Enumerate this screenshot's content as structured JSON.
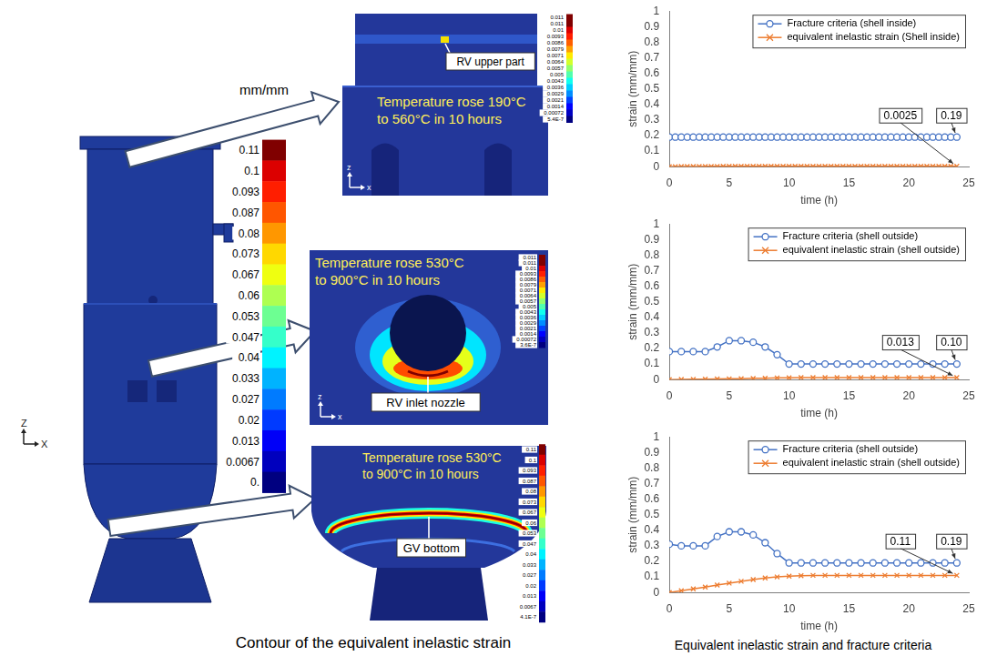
{
  "chart_data": [
    {
      "type": "line",
      "x": [
        0,
        0.5,
        1,
        1.5,
        2,
        2.5,
        3,
        3.5,
        4,
        4.5,
        5,
        5.5,
        6,
        6.5,
        7,
        7.5,
        8,
        8.5,
        9,
        9.5,
        10,
        10.5,
        11,
        11.5,
        12,
        12.5,
        13,
        13.5,
        14,
        14.5,
        15,
        15.5,
        16,
        16.5,
        17,
        17.5,
        18,
        18.5,
        19,
        19.5,
        20,
        20.5,
        21,
        21.5,
        22,
        22.5,
        23,
        23.5,
        24
      ],
      "series": [
        {
          "name": "Fracture criteria (shell inside)",
          "color": "#4472c4",
          "marker": "circle",
          "line_style": "solid",
          "values": [
            0.19,
            0.19,
            0.19,
            0.19,
            0.19,
            0.19,
            0.19,
            0.19,
            0.19,
            0.19,
            0.19,
            0.19,
            0.19,
            0.19,
            0.19,
            0.19,
            0.19,
            0.19,
            0.19,
            0.19,
            0.19,
            0.19,
            0.19,
            0.19,
            0.19,
            0.19,
            0.19,
            0.19,
            0.19,
            0.19,
            0.19,
            0.19,
            0.19,
            0.19,
            0.19,
            0.19,
            0.19,
            0.19,
            0.19,
            0.19,
            0.19,
            0.19,
            0.19,
            0.19,
            0.19,
            0.19,
            0.19,
            0.19,
            0.19
          ]
        },
        {
          "name": "equivalent inelastic strain (Shell inside)",
          "color": "#ed7d31",
          "marker": "x",
          "line_style": "solid",
          "values": [
            0,
            0.0005,
            0.001,
            0.0013,
            0.0016,
            0.0018,
            0.002,
            0.0021,
            0.0022,
            0.0023,
            0.0024,
            0.0025,
            0.0025,
            0.0025,
            0.0025,
            0.0025,
            0.0025,
            0.0025,
            0.0025,
            0.0025,
            0.0025,
            0.0025,
            0.0025,
            0.0025,
            0.0025,
            0.0025,
            0.0025,
            0.0025,
            0.0025,
            0.0025,
            0.0025,
            0.0025,
            0.0025,
            0.0025,
            0.0025,
            0.0025,
            0.0025,
            0.0025,
            0.0025,
            0.0025,
            0.0025,
            0.0025,
            0.0025,
            0.0025,
            0.0025,
            0.0025,
            0.0025,
            0.0025,
            0.0025
          ]
        }
      ],
      "x_label": "time (h)",
      "y_label": "strain (mm/mm)",
      "xlim": [
        0,
        25
      ],
      "xticks": [
        0,
        5,
        10,
        15,
        20,
        25
      ],
      "ylim": [
        0,
        1
      ],
      "yticks": [
        0,
        0.1,
        0.2,
        0.3,
        0.4,
        0.5,
        0.6,
        0.7,
        0.8,
        0.9,
        1
      ],
      "grid": false,
      "legend": "upper right",
      "annotations": [
        "0.19",
        "0.0025"
      ]
    },
    {
      "type": "line",
      "x": [
        0,
        1,
        2,
        3,
        4,
        5,
        6,
        7,
        8,
        9,
        10,
        11,
        12,
        13,
        14,
        15,
        16,
        17,
        18,
        19,
        20,
        21,
        22,
        23,
        24
      ],
      "series": [
        {
          "name": "Fracture criteria (shell outside)",
          "color": "#4472c4",
          "marker": "circle",
          "line_style": "solid",
          "values": [
            0.18,
            0.18,
            0.18,
            0.18,
            0.21,
            0.25,
            0.25,
            0.24,
            0.21,
            0.16,
            0.1,
            0.1,
            0.1,
            0.1,
            0.1,
            0.1,
            0.1,
            0.1,
            0.1,
            0.1,
            0.1,
            0.1,
            0.1,
            0.1,
            0.1
          ]
        },
        {
          "name": "equivalent inelastic strain (shell outside)",
          "color": "#ed7d31",
          "marker": "x",
          "line_style": "solid",
          "values": [
            0,
            0.001,
            0.002,
            0.003,
            0.004,
            0.005,
            0.006,
            0.008,
            0.009,
            0.011,
            0.012,
            0.013,
            0.013,
            0.013,
            0.013,
            0.013,
            0.013,
            0.013,
            0.013,
            0.013,
            0.013,
            0.013,
            0.013,
            0.013,
            0.013
          ]
        }
      ],
      "x_label": "time (h)",
      "y_label": "strain (mm/mm)",
      "xlim": [
        0,
        25
      ],
      "xticks": [
        0,
        5,
        10,
        15,
        20,
        25
      ],
      "ylim": [
        0,
        1
      ],
      "yticks": [
        0,
        0.1,
        0.2,
        0.3,
        0.4,
        0.5,
        0.6,
        0.7,
        0.8,
        0.9,
        1
      ],
      "grid": false,
      "legend": "upper right",
      "annotations": [
        "0.10",
        "0.013"
      ]
    },
    {
      "type": "line",
      "x": [
        0,
        1,
        2,
        3,
        4,
        5,
        6,
        7,
        8,
        9,
        10,
        11,
        12,
        13,
        14,
        15,
        16,
        17,
        18,
        19,
        20,
        21,
        22,
        23,
        24
      ],
      "series": [
        {
          "name": "Fracture criteria (shell outside)",
          "color": "#4472c4",
          "marker": "circle",
          "line_style": "solid",
          "values": [
            0.31,
            0.3,
            0.3,
            0.3,
            0.36,
            0.39,
            0.39,
            0.37,
            0.32,
            0.25,
            0.19,
            0.19,
            0.19,
            0.19,
            0.19,
            0.19,
            0.19,
            0.19,
            0.19,
            0.19,
            0.19,
            0.19,
            0.19,
            0.19,
            0.19
          ]
        },
        {
          "name": "equivalent inelastic strain (shell outside)",
          "color": "#ed7d31",
          "marker": "x",
          "line_style": "solid",
          "values": [
            0,
            0.012,
            0.023,
            0.035,
            0.048,
            0.06,
            0.072,
            0.083,
            0.093,
            0.1,
            0.105,
            0.108,
            0.11,
            0.11,
            0.11,
            0.11,
            0.11,
            0.11,
            0.11,
            0.11,
            0.11,
            0.11,
            0.11,
            0.11,
            0.11
          ]
        }
      ],
      "x_label": "time (h)",
      "y_label": "strain (mm/mm)",
      "xlim": [
        0,
        25
      ],
      "xticks": [
        0,
        5,
        10,
        15,
        20,
        25
      ],
      "ylim": [
        0,
        1
      ],
      "yticks": [
        0,
        0.1,
        0.2,
        0.3,
        0.4,
        0.5,
        0.6,
        0.7,
        0.8,
        0.9,
        1
      ],
      "grid": false,
      "legend": "upper right",
      "annotations": [
        "0.19",
        "0.11"
      ]
    }
  ],
  "figure": {
    "left_caption": "Contour of the equivalent inelastic strain",
    "right_caption": "Equivalent inelastic strain and fracture criteria",
    "triad": [
      "Z",
      "X"
    ],
    "colorbar": {
      "unit": "mm/mm",
      "ticks": [
        0.11,
        0.1,
        0.093,
        0.087,
        0.08,
        0.073,
        0.067,
        0.06,
        0.053,
        0.047,
        0.04,
        0.033,
        0.027,
        0.02,
        0.013,
        0.0067,
        {
          "value": 0,
          "label": "0."
        }
      ]
    },
    "panels": [
      {
        "label": "RV upper part",
        "note": "Temperature rose 190°C to 560°C in 10 hours",
        "triad": [
          "z",
          "x"
        ],
        "colorbar": [
          0.011,
          0.011,
          0.01,
          0.0093,
          0.0086,
          0.0079,
          0.0071,
          0.0064,
          0.0057,
          0.005,
          0.0043,
          0.0036,
          0.0029,
          0.0021,
          0.0014,
          0.00072,
          {
            "value": 5.4e-07,
            "label": "5.4E-7"
          }
        ]
      },
      {
        "label": "RV inlet nozzle",
        "note": "Temperature rose 530°C to 900°C in 10 hours",
        "triad": [
          "z",
          "x"
        ],
        "colorbar": [
          0.011,
          0.011,
          0.01,
          0.0093,
          0.0086,
          0.0079,
          0.0071,
          0.0064,
          0.0057,
          0.005,
          0.0043,
          0.0036,
          0.0029,
          0.0021,
          0.0014,
          0.00072,
          {
            "value": 3.6e-07,
            "label": "3.6E-7"
          }
        ]
      },
      {
        "label": "GV bottom",
        "note": "Temperature rose 530°C to 900°C in 10 hours",
        "triad": [
          "z",
          "x"
        ],
        "colorbar": [
          0.11,
          0.1,
          0.093,
          0.087,
          0.08,
          0.073,
          0.067,
          0.06,
          0.053,
          0.047,
          0.04,
          0.033,
          0.027,
          0.02,
          0.013,
          0.0067,
          {
            "value": 4.1e-07,
            "label": "4.1E-7"
          }
        ]
      }
    ]
  }
}
